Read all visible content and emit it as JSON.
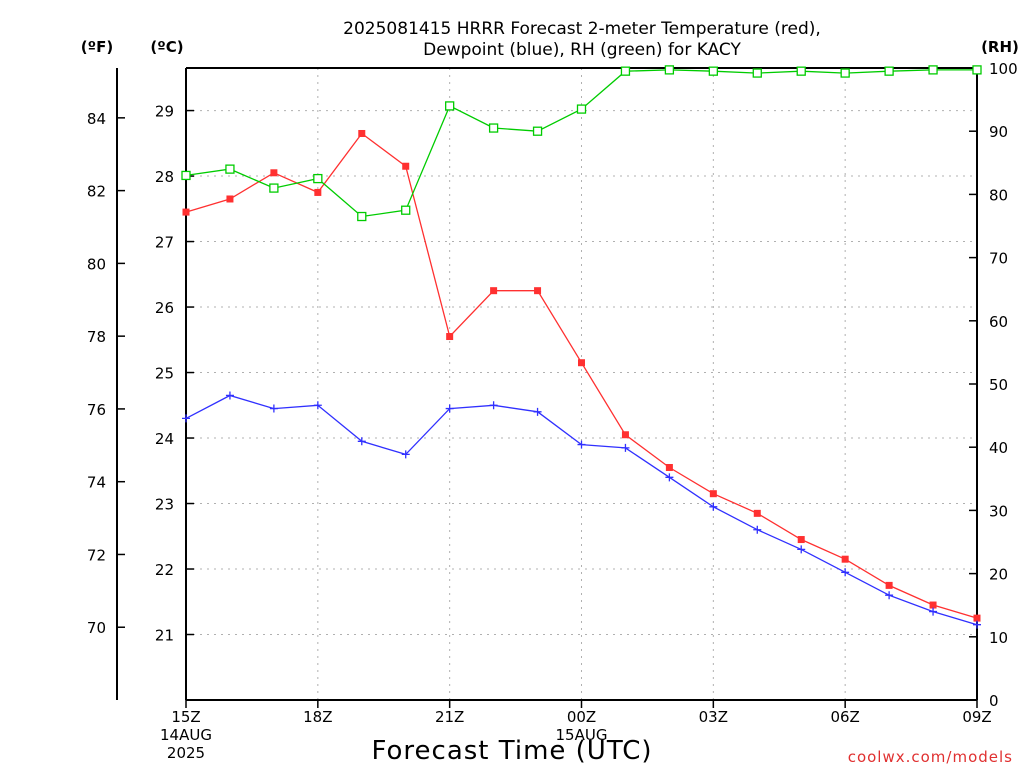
{
  "chart_data": {
    "type": "line",
    "title_line1": "2025081415 HRRR Forecast 2-meter Temperature (red),",
    "title_line2": "Dewpoint (blue), RH (green) for KACY",
    "xlabel": "Forecast Time (UTC)",
    "credit": "coolwx.com/models",
    "left_outer_unit": "(ºF)",
    "left_inner_unit": "(ºC)",
    "right_unit": "(RH)",
    "x_ticks": [
      {
        "h": 0,
        "label": "15Z",
        "sub1": "14AUG",
        "sub2": "2025"
      },
      {
        "h": 3,
        "label": "18Z"
      },
      {
        "h": 6,
        "label": "21Z"
      },
      {
        "h": 9,
        "label": "00Z",
        "sub1": "15AUG"
      },
      {
        "h": 12,
        "label": "03Z"
      },
      {
        "h": 15,
        "label": "06Z"
      },
      {
        "h": 18,
        "label": "09Z"
      }
    ],
    "xlim": [
      0,
      18
    ],
    "celsius_ticks": [
      21,
      22,
      23,
      24,
      25,
      26,
      27,
      28,
      29
    ],
    "fahrenheit_ticks": [
      70,
      72,
      74,
      76,
      78,
      80,
      82,
      84
    ],
    "rh_ticks": [
      0,
      10,
      20,
      30,
      40,
      50,
      60,
      70,
      80,
      90,
      100
    ],
    "ylim_celsius": [
      20.0,
      29.65
    ],
    "ylim_rh": [
      0,
      100
    ],
    "grid": true,
    "x": [
      0,
      1,
      2,
      3,
      4,
      5,
      6,
      7,
      8,
      9,
      10,
      11,
      12,
      13,
      14,
      15,
      16,
      17,
      18
    ],
    "series": [
      {
        "key": "temperature",
        "axis": "celsius",
        "color": "#ff3030",
        "marker": "filled-square",
        "values": [
          27.45,
          27.65,
          28.05,
          27.75,
          28.65,
          28.15,
          25.55,
          26.25,
          26.25,
          25.15,
          24.05,
          23.55,
          23.15,
          22.85,
          22.45,
          22.15,
          21.75,
          21.45,
          21.25
        ]
      },
      {
        "key": "dewpoint",
        "axis": "celsius",
        "color": "#3030ff",
        "marker": "plus",
        "values": [
          24.3,
          24.65,
          24.45,
          24.5,
          23.95,
          23.75,
          24.45,
          24.5,
          24.4,
          23.9,
          23.85,
          23.4,
          22.95,
          22.6,
          22.3,
          21.95,
          21.6,
          21.35,
          21.15
        ]
      },
      {
        "key": "rh",
        "axis": "rh",
        "color": "#00cc00",
        "marker": "open-square",
        "values": [
          83,
          84,
          81,
          82.5,
          76.5,
          77.5,
          94,
          90.5,
          90,
          93.5,
          99.5,
          99.7,
          99.5,
          99.2,
          99.5,
          99.2,
          99.5,
          99.7,
          99.7
        ]
      }
    ]
  }
}
